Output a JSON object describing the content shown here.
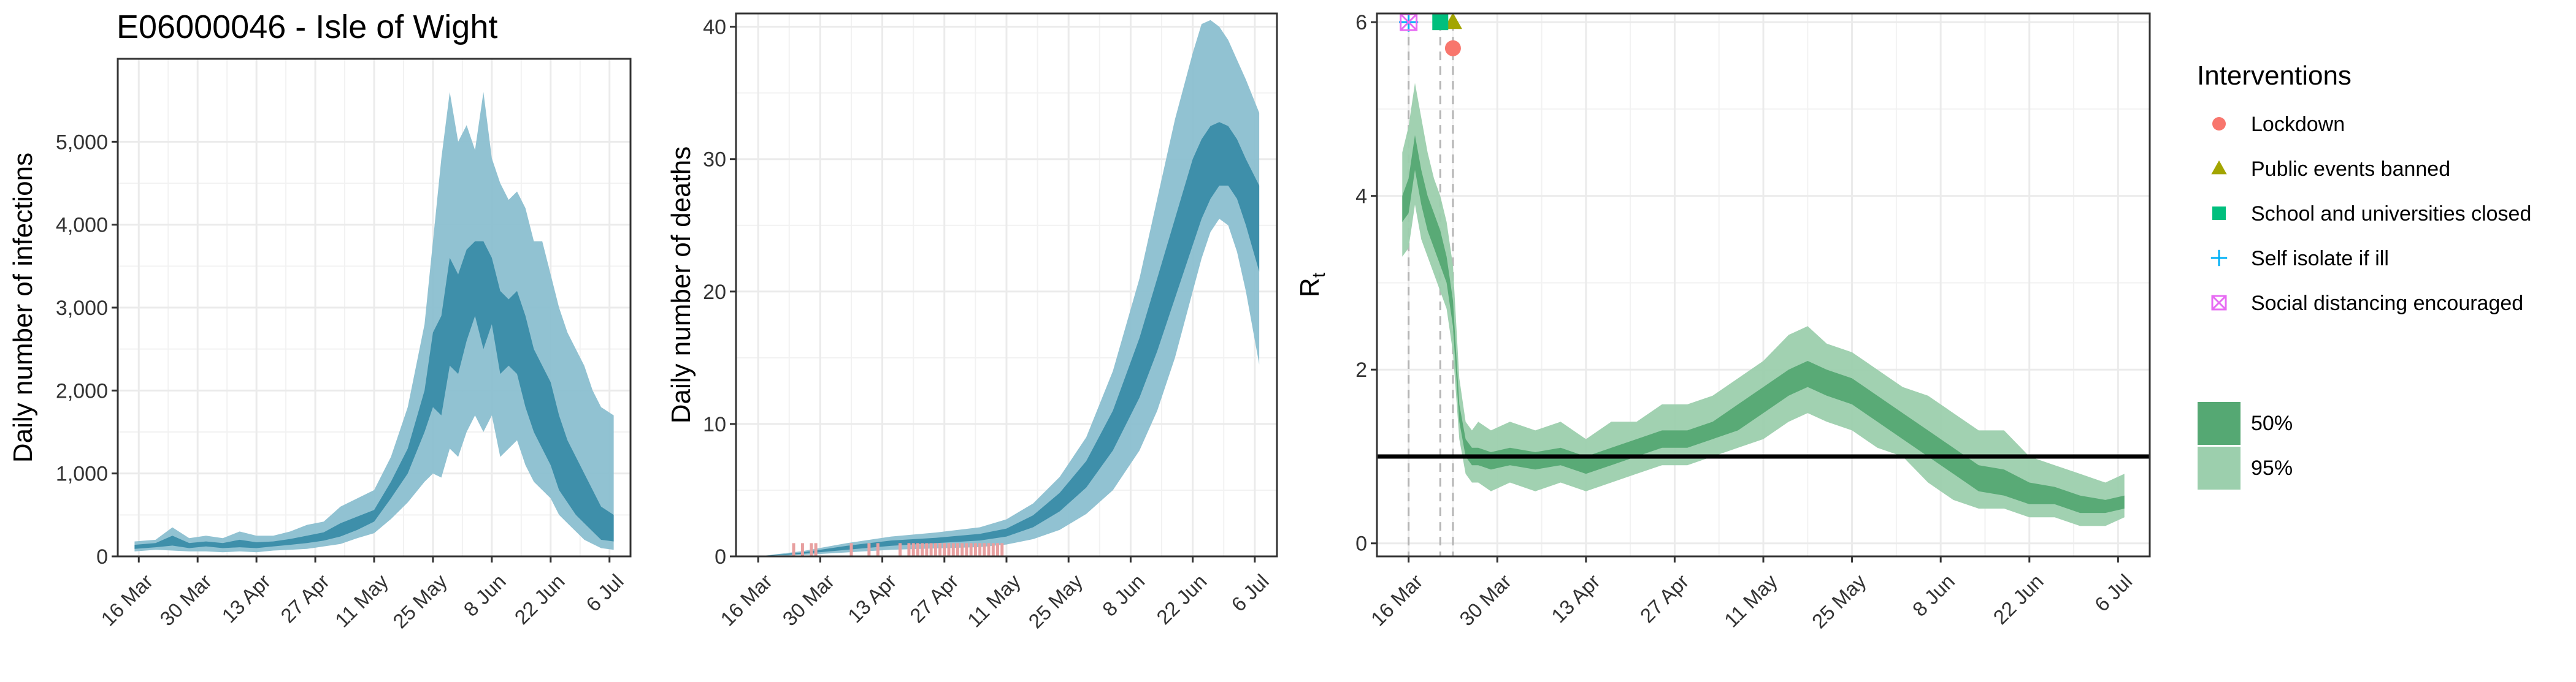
{
  "title": "E06000046 - Isle of Wight",
  "colors": {
    "band_blue_95": "#8bbfd0",
    "band_blue_50": "#3a8ca8",
    "band_green_95": "#9ccfad",
    "band_green_50": "#55a873",
    "observed_deaths": "#e8a0a0",
    "grid": "#ebebeb",
    "lockdown": "#f8766d",
    "public_events": "#a3a500",
    "schools": "#00bf7d",
    "self_isolate": "#00b0f6",
    "social_distancing": "#e76bf3"
  },
  "chart_data": [
    {
      "type": "area",
      "panel": "infections",
      "ylabel": "Daily number of infections",
      "xlabel": "",
      "x_ticks": [
        "16 Mar",
        "30 Mar",
        "13 Apr",
        "27 Apr",
        "11 May",
        "25 May",
        "8 Jun",
        "22 Jun",
        "6 Jul"
      ],
      "x_tick_days": [
        0,
        14,
        28,
        42,
        56,
        70,
        84,
        98,
        112
      ],
      "xlim_days": [
        -5,
        117
      ],
      "y_ticks": [
        0,
        1000,
        2000,
        3000,
        4000,
        5000
      ],
      "y_tick_labels": [
        "0",
        "1,000",
        "2,000",
        "3,000",
        "4,000",
        "5,000"
      ],
      "ylim": [
        0,
        6000
      ],
      "series": [
        {
          "band": "95%",
          "x_days": [
            -1,
            4,
            8,
            12,
            16,
            20,
            24,
            28,
            32,
            36,
            40,
            44,
            48,
            52,
            56,
            60,
            64,
            68,
            70,
            72,
            74,
            76,
            78,
            80,
            82,
            84,
            86,
            88,
            90,
            92,
            94,
            96,
            98,
            100,
            102,
            104,
            106,
            108,
            110,
            113
          ],
          "lower": [
            60,
            80,
            70,
            60,
            60,
            50,
            60,
            50,
            70,
            80,
            90,
            120,
            150,
            220,
            280,
            450,
            650,
            900,
            1000,
            950,
            1300,
            1200,
            1500,
            1700,
            1500,
            1700,
            1200,
            1300,
            1400,
            1100,
            900,
            800,
            700,
            500,
            400,
            300,
            200,
            150,
            100,
            80
          ],
          "upper": [
            180,
            200,
            350,
            220,
            250,
            220,
            300,
            250,
            250,
            300,
            380,
            420,
            600,
            700,
            800,
            1200,
            1800,
            2800,
            3800,
            4800,
            5600,
            5000,
            5200,
            4900,
            5600,
            4800,
            4500,
            4300,
            4400,
            4200,
            3800,
            3800,
            3400,
            3000,
            2700,
            2500,
            2300,
            2000,
            1800,
            1700
          ]
        },
        {
          "band": "50%",
          "x_days": [
            -1,
            4,
            8,
            12,
            16,
            20,
            24,
            28,
            32,
            36,
            40,
            44,
            48,
            52,
            56,
            60,
            64,
            68,
            70,
            72,
            74,
            76,
            78,
            80,
            82,
            84,
            86,
            88,
            90,
            92,
            94,
            96,
            98,
            100,
            102,
            104,
            106,
            108,
            110,
            113
          ],
          "lower": [
            90,
            110,
            130,
            100,
            120,
            100,
            110,
            100,
            120,
            140,
            160,
            190,
            240,
            320,
            420,
            700,
            1000,
            1500,
            1800,
            1700,
            2300,
            2200,
            2600,
            2900,
            2500,
            2800,
            2200,
            2300,
            2200,
            1800,
            1500,
            1300,
            1100,
            800,
            650,
            500,
            400,
            300,
            200,
            180
          ],
          "upper": [
            140,
            160,
            250,
            160,
            180,
            160,
            200,
            170,
            180,
            210,
            250,
            290,
            400,
            480,
            560,
            900,
            1300,
            2000,
            2700,
            2900,
            3600,
            3400,
            3700,
            3800,
            3800,
            3600,
            3200,
            3100,
            3200,
            2900,
            2500,
            2300,
            2100,
            1700,
            1400,
            1200,
            1000,
            800,
            600,
            500
          ]
        }
      ]
    },
    {
      "type": "area",
      "panel": "deaths",
      "ylabel": "Daily number of deaths",
      "xlabel": "",
      "x_ticks": [
        "16 Mar",
        "30 Mar",
        "13 Apr",
        "27 Apr",
        "11 May",
        "25 May",
        "8 Jun",
        "22 Jun",
        "6 Jul"
      ],
      "x_tick_days": [
        0,
        14,
        28,
        42,
        56,
        70,
        84,
        98,
        112
      ],
      "xlim_days": [
        -5,
        117
      ],
      "y_ticks": [
        0,
        10,
        20,
        30,
        40
      ],
      "y_tick_labels": [
        "0",
        "10",
        "20",
        "30",
        "40"
      ],
      "ylim": [
        0,
        41
      ],
      "series": [
        {
          "band": "95%",
          "x_days": [
            0,
            10,
            20,
            30,
            40,
            50,
            56,
            62,
            68,
            74,
            80,
            86,
            90,
            94,
            98,
            100,
            102,
            104,
            106,
            108,
            110,
            113
          ],
          "lower": [
            0,
            0.1,
            0.3,
            0.5,
            0.6,
            0.7,
            0.9,
            1.3,
            2,
            3.2,
            5,
            8,
            11,
            15,
            20,
            22.5,
            24.5,
            25.5,
            25,
            23,
            20,
            14.5
          ],
          "upper": [
            0,
            0.4,
            1,
            1.5,
            1.8,
            2.2,
            2.8,
            4,
            6,
            9,
            14,
            21,
            27,
            33,
            38,
            40.2,
            40.5,
            40,
            39,
            37.5,
            36,
            33.5
          ]
        },
        {
          "band": "50%",
          "x_days": [
            0,
            10,
            20,
            30,
            40,
            50,
            56,
            62,
            68,
            74,
            80,
            86,
            90,
            94,
            98,
            100,
            102,
            104,
            106,
            108,
            110,
            113
          ],
          "lower": [
            0,
            0.2,
            0.5,
            0.8,
            1,
            1.2,
            1.5,
            2.2,
            3.4,
            5.2,
            8,
            12,
            15.5,
            19.5,
            23.5,
            25.5,
            27,
            28,
            28,
            27,
            25,
            21.5
          ],
          "upper": [
            0,
            0.3,
            0.8,
            1.2,
            1.4,
            1.7,
            2.1,
            3.1,
            4.8,
            7.2,
            11,
            16.5,
            21,
            25.5,
            30,
            31.5,
            32.5,
            32.8,
            32.5,
            31.5,
            30,
            28
          ]
        }
      ],
      "observed": {
        "x_days": [
          8,
          10,
          12,
          13,
          21,
          25,
          27,
          32,
          34,
          35,
          36,
          37,
          38,
          39,
          40,
          41,
          42,
          43,
          44,
          45,
          46,
          47,
          48,
          49,
          50,
          51,
          52,
          53,
          54,
          55
        ],
        "values": [
          1,
          1,
          1,
          1,
          1,
          1,
          1,
          1,
          1,
          1,
          1,
          1,
          1,
          1,
          1,
          1,
          1,
          1,
          1,
          1,
          1,
          1,
          1,
          1,
          1,
          1,
          1,
          1,
          1,
          1
        ]
      }
    },
    {
      "type": "area",
      "panel": "rt",
      "ylabel": "R",
      "ylabel_sub": "t",
      "xlabel": "",
      "x_ticks": [
        "16 Mar",
        "30 Mar",
        "13 Apr",
        "27 Apr",
        "11 May",
        "25 May",
        "8 Jun",
        "22 Jun",
        "6 Jul"
      ],
      "x_tick_days": [
        0,
        14,
        28,
        42,
        56,
        70,
        84,
        98,
        112
      ],
      "xlim_days": [
        -5,
        117
      ],
      "y_ticks": [
        0,
        2,
        4,
        6
      ],
      "y_tick_labels": [
        "0",
        "2",
        "4",
        "6"
      ],
      "ylim": [
        -0.15,
        6.1
      ],
      "reference_line_y": 1,
      "series": [
        {
          "band": "95%",
          "x_days": [
            -1,
            0,
            1,
            2,
            3,
            4,
            5,
            6,
            7,
            8,
            9,
            10,
            11,
            13,
            16,
            20,
            24,
            28,
            32,
            36,
            40,
            44,
            48,
            52,
            56,
            60,
            63,
            66,
            70,
            74,
            78,
            82,
            86,
            90,
            94,
            98,
            102,
            106,
            110,
            113
          ],
          "lower": [
            3.3,
            3.4,
            3.9,
            3.5,
            3.3,
            3.1,
            2.9,
            2.7,
            2.2,
            1.2,
            0.8,
            0.7,
            0.7,
            0.6,
            0.7,
            0.6,
            0.7,
            0.6,
            0.7,
            0.8,
            0.9,
            0.9,
            1.0,
            1.1,
            1.2,
            1.4,
            1.5,
            1.4,
            1.3,
            1.1,
            1.0,
            0.7,
            0.5,
            0.4,
            0.4,
            0.3,
            0.3,
            0.2,
            0.2,
            0.3
          ],
          "upper": [
            4.5,
            4.8,
            5.3,
            4.9,
            4.5,
            4.2,
            4.0,
            3.7,
            3.2,
            1.9,
            1.4,
            1.3,
            1.4,
            1.3,
            1.4,
            1.3,
            1.4,
            1.2,
            1.4,
            1.4,
            1.6,
            1.6,
            1.7,
            1.9,
            2.1,
            2.4,
            2.5,
            2.3,
            2.2,
            2.0,
            1.8,
            1.7,
            1.5,
            1.3,
            1.3,
            1.0,
            0.9,
            0.8,
            0.7,
            0.8
          ]
        },
        {
          "band": "50%",
          "x_days": [
            -1,
            0,
            1,
            2,
            3,
            4,
            5,
            6,
            7,
            8,
            9,
            10,
            11,
            13,
            16,
            20,
            24,
            28,
            32,
            36,
            40,
            44,
            48,
            52,
            56,
            60,
            63,
            66,
            70,
            74,
            78,
            82,
            86,
            90,
            94,
            98,
            102,
            106,
            110,
            113
          ],
          "lower": [
            3.7,
            3.8,
            4.3,
            3.9,
            3.6,
            3.4,
            3.2,
            3.0,
            2.5,
            1.4,
            1.0,
            0.9,
            0.9,
            0.85,
            0.9,
            0.85,
            0.9,
            0.8,
            0.9,
            1.0,
            1.1,
            1.1,
            1.2,
            1.3,
            1.5,
            1.7,
            1.8,
            1.7,
            1.6,
            1.4,
            1.2,
            1.0,
            0.8,
            0.6,
            0.55,
            0.45,
            0.45,
            0.35,
            0.35,
            0.4
          ],
          "upper": [
            4.0,
            4.2,
            4.7,
            4.3,
            4.0,
            3.8,
            3.6,
            3.3,
            2.8,
            1.6,
            1.2,
            1.1,
            1.1,
            1.05,
            1.1,
            1.05,
            1.1,
            1.0,
            1.1,
            1.2,
            1.3,
            1.3,
            1.4,
            1.6,
            1.8,
            2.0,
            2.1,
            2.0,
            1.9,
            1.7,
            1.5,
            1.3,
            1.1,
            0.9,
            0.85,
            0.7,
            0.65,
            0.55,
            0.5,
            0.55
          ]
        }
      ],
      "interventions": [
        {
          "name": "Lockdown",
          "day": 7,
          "marker_y": 5.7,
          "shape": "circle",
          "color": "#f8766d"
        },
        {
          "name": "Public events banned",
          "day": 7,
          "marker_y": 6.0,
          "shape": "triangle",
          "color": "#a3a500"
        },
        {
          "name": "School and universities closed",
          "day": 5,
          "marker_y": 6.0,
          "shape": "square",
          "color": "#00bf7d"
        },
        {
          "name": "Self isolate if ill",
          "day": 0,
          "marker_y": 6.0,
          "shape": "plus",
          "color": "#00b0f6"
        },
        {
          "name": "Social distancing encouraged",
          "day": 0,
          "marker_y": 6.0,
          "shape": "boxcross",
          "color": "#e76bf3"
        }
      ]
    }
  ],
  "legend": {
    "title": "Interventions",
    "items": [
      {
        "label": "Lockdown",
        "shape": "circle",
        "color": "#f8766d"
      },
      {
        "label": "Public events banned",
        "shape": "triangle",
        "color": "#a3a500"
      },
      {
        "label": "School and universities closed",
        "shape": "square",
        "color": "#00bf7d"
      },
      {
        "label": "Self isolate if ill",
        "shape": "plus",
        "color": "#00b0f6"
      },
      {
        "label": "Social distancing encouraged",
        "shape": "boxcross",
        "color": "#e76bf3"
      }
    ],
    "bands": [
      {
        "label": "50%",
        "color": "#55a873"
      },
      {
        "label": "95%",
        "color": "#9ccfad"
      }
    ]
  }
}
